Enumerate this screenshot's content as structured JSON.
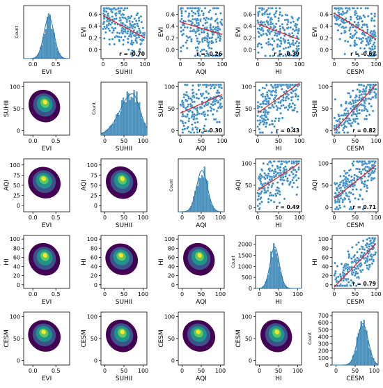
{
  "figure": {
    "type": "pairplot",
    "variables": [
      "EVI",
      "SUHII",
      "AQI",
      "HI",
      "CESM"
    ],
    "corr_prefix": "r = "
  },
  "colors": {
    "hist_fill": "#5b9fc9",
    "hist_edge": "#2a6f9a",
    "kde_line": "#1f77b4",
    "scatter_point": "#2e86c1",
    "scatter_edge": "#ffffff",
    "regression_line": "#e41a1c",
    "density_low": "#440154",
    "density_mid": "#21918c",
    "density_high": "#fde725"
  },
  "chart_data": [
    {
      "type": "histogram",
      "row": 0,
      "col": 0,
      "x": "EVI",
      "ylabel": "Count",
      "xlim": [
        -0.2,
        0.8
      ],
      "xticks": [
        "0.0",
        "0.5"
      ],
      "yticks": [],
      "distribution": {
        "mean": 0.35,
        "sd": 0.11
      }
    },
    {
      "type": "scatter",
      "row": 0,
      "col": 1,
      "xlabel": "SUHII",
      "ylabel": "EVI",
      "xlim": [
        -5,
        105
      ],
      "ylim": [
        -0.15,
        0.75
      ],
      "xticks": [
        "0",
        "50",
        "100"
      ],
      "yticks": [
        "0.0",
        "0.2",
        "0.4",
        "0.6"
      ],
      "r": -0.7,
      "regression": {
        "x": [
          0,
          100
        ],
        "y": [
          0.58,
          0.2
        ]
      }
    },
    {
      "type": "scatter",
      "row": 0,
      "col": 2,
      "xlabel": "AQI",
      "ylabel": "EVI",
      "xlim": [
        -5,
        105
      ],
      "ylim": [
        -0.15,
        0.75
      ],
      "xticks": [
        "0",
        "50",
        "100"
      ],
      "yticks": [
        "0.0",
        "0.2",
        "0.4",
        "0.6"
      ],
      "r": -0.26,
      "regression": {
        "x": [
          0,
          100
        ],
        "y": [
          0.47,
          0.26
        ]
      }
    },
    {
      "type": "scatter",
      "row": 0,
      "col": 3,
      "xlabel": "HI",
      "ylabel": "EVI",
      "xlim": [
        -5,
        105
      ],
      "ylim": [
        -0.15,
        0.75
      ],
      "xticks": [
        "0",
        "50",
        "100"
      ],
      "yticks": [
        "0.0",
        "0.2",
        "0.4",
        "0.6"
      ],
      "r": -0.39,
      "regression": {
        "x": [
          0,
          100
        ],
        "y": [
          0.44,
          0.17
        ]
      }
    },
    {
      "type": "scatter",
      "row": 0,
      "col": 4,
      "xlabel": "CESM",
      "ylabel": "EVI",
      "xlim": [
        -5,
        105
      ],
      "ylim": [
        -0.15,
        0.75
      ],
      "xticks": [
        "0",
        "50",
        "100"
      ],
      "yticks": [
        "0.0",
        "0.2",
        "0.4",
        "0.6"
      ],
      "r": -0.62,
      "regression": {
        "x": [
          0,
          100
        ],
        "y": [
          0.62,
          0.18
        ]
      }
    },
    {
      "type": "density",
      "row": 1,
      "col": 0,
      "xlabel": "EVI",
      "ylabel": "SUHII",
      "xlim": [
        -0.2,
        0.8
      ],
      "ylim": [
        -10,
        110
      ],
      "xticks": [
        "0.0",
        "0.5"
      ],
      "yticks": [
        "0",
        "50",
        "100"
      ]
    },
    {
      "type": "histogram",
      "row": 1,
      "col": 1,
      "x": "SUHII",
      "ylabel": "Count",
      "xlim": [
        -10,
        110
      ],
      "xticks": [
        "0",
        "50",
        "100"
      ],
      "yticks": [],
      "distribution": {
        "mean": 72,
        "sd": 20,
        "skew": "left"
      }
    },
    {
      "type": "scatter",
      "row": 1,
      "col": 2,
      "xlabel": "AQI",
      "ylabel": "SUHII",
      "xlim": [
        -5,
        105
      ],
      "ylim": [
        -10,
        110
      ],
      "xticks": [
        "0",
        "50",
        "100"
      ],
      "yticks": [
        "0",
        "50",
        "100"
      ],
      "r": 0.3,
      "regression": {
        "x": [
          0,
          100
        ],
        "y": [
          40,
          82
        ]
      }
    },
    {
      "type": "scatter",
      "row": 1,
      "col": 3,
      "xlabel": "HI",
      "ylabel": "SUHII",
      "xlim": [
        -5,
        105
      ],
      "ylim": [
        -10,
        110
      ],
      "xticks": [
        "0",
        "50",
        "100"
      ],
      "yticks": [
        "0",
        "50",
        "100"
      ],
      "r": 0.43,
      "regression": {
        "x": [
          0,
          100
        ],
        "y": [
          40,
          108
        ]
      }
    },
    {
      "type": "scatter",
      "row": 1,
      "col": 4,
      "xlabel": "CESM",
      "ylabel": "SUHII",
      "xlim": [
        -5,
        105
      ],
      "ylim": [
        -10,
        110
      ],
      "xticks": [
        "0",
        "50",
        "100"
      ],
      "yticks": [
        "0",
        "50",
        "100"
      ],
      "r": 0.82,
      "regression": {
        "x": [
          0,
          100
        ],
        "y": [
          0,
          105
        ]
      }
    },
    {
      "type": "density",
      "row": 2,
      "col": 0,
      "xlabel": "EVI",
      "ylabel": "AQI",
      "xlim": [
        -0.2,
        0.8
      ],
      "ylim": [
        -15,
        115
      ],
      "xticks": [
        "0.0",
        "0.5"
      ],
      "yticks": [
        "0",
        "25",
        "50",
        "75",
        "100"
      ]
    },
    {
      "type": "density",
      "row": 2,
      "col": 1,
      "xlabel": "SUHII",
      "ylabel": "AQI",
      "xlim": [
        -10,
        110
      ],
      "ylim": [
        -15,
        115
      ],
      "xticks": [
        "0",
        "50",
        "100"
      ],
      "yticks": [
        "0",
        "25",
        "50",
        "75",
        "100"
      ]
    },
    {
      "type": "histogram",
      "row": 2,
      "col": 2,
      "x": "AQI",
      "ylabel": "Count",
      "xlim": [
        -10,
        110
      ],
      "xticks": [
        "0",
        "50",
        "100"
      ],
      "yticks": [],
      "distribution": {
        "mean": 52,
        "sd": 14
      }
    },
    {
      "type": "scatter",
      "row": 2,
      "col": 3,
      "xlabel": "HI",
      "ylabel": "AQI",
      "xlim": [
        -5,
        105
      ],
      "ylim": [
        -10,
        110
      ],
      "xticks": [
        "0",
        "50",
        "100"
      ],
      "yticks": [
        "0",
        "50",
        "100"
      ],
      "r": 0.49,
      "regression": {
        "x": [
          0,
          100
        ],
        "y": [
          38,
          100
        ]
      }
    },
    {
      "type": "scatter",
      "row": 2,
      "col": 4,
      "xlabel": "CESM",
      "ylabel": "AQI",
      "xlim": [
        -5,
        105
      ],
      "ylim": [
        -10,
        110
      ],
      "xticks": [
        "0",
        "50",
        "100"
      ],
      "yticks": [
        "0",
        "50",
        "100"
      ],
      "r": 0.71,
      "regression": {
        "x": [
          0,
          100
        ],
        "y": [
          20,
          95
        ]
      }
    },
    {
      "type": "density",
      "row": 3,
      "col": 0,
      "xlabel": "EVI",
      "ylabel": "HI",
      "xlim": [
        -0.2,
        0.8
      ],
      "ylim": [
        -8,
        108
      ],
      "xticks": [
        "0.0",
        "0.5"
      ],
      "yticks": [
        "0",
        "20",
        "40",
        "60",
        "80",
        "100"
      ]
    },
    {
      "type": "density",
      "row": 3,
      "col": 1,
      "xlabel": "SUHII",
      "ylabel": "HI",
      "xlim": [
        -10,
        110
      ],
      "ylim": [
        -8,
        108
      ],
      "xticks": [
        "0",
        "50",
        "100"
      ],
      "yticks": [
        "0",
        "20",
        "40",
        "60",
        "80",
        "100"
      ]
    },
    {
      "type": "density",
      "row": 3,
      "col": 2,
      "xlabel": "AQI",
      "ylabel": "HI",
      "xlim": [
        -10,
        110
      ],
      "ylim": [
        -8,
        108
      ],
      "xticks": [
        "0",
        "50",
        "100"
      ],
      "yticks": [
        "0",
        "20",
        "40",
        "60",
        "80",
        "100"
      ]
    },
    {
      "type": "histogram",
      "row": 3,
      "col": 3,
      "x": "HI",
      "ylabel": "Count",
      "xlim": [
        -10,
        110
      ],
      "xticks": [
        "0",
        "50",
        "100"
      ],
      "yticks": [
        "0",
        "500",
        "1000",
        "1500",
        "2000"
      ],
      "ylim": [
        0,
        2400
      ],
      "distribution": {
        "mean": 40,
        "sd": 12
      }
    },
    {
      "type": "scatter",
      "row": 3,
      "col": 4,
      "xlabel": "CESM",
      "ylabel": "HI",
      "xlim": [
        -5,
        105
      ],
      "ylim": [
        -8,
        108
      ],
      "xticks": [
        "0",
        "50",
        "100"
      ],
      "yticks": [
        "0",
        "20",
        "40",
        "60",
        "80",
        "100"
      ],
      "r": 0.79,
      "regression": {
        "x": [
          0,
          100
        ],
        "y": [
          -5,
          90
        ]
      }
    },
    {
      "type": "density",
      "row": 4,
      "col": 0,
      "xlabel": "EVI",
      "ylabel": "CESM",
      "xlim": [
        -0.2,
        0.8
      ],
      "ylim": [
        -10,
        110
      ],
      "xticks": [
        "0.0",
        "0.5"
      ],
      "yticks": [
        "0",
        "50",
        "100"
      ]
    },
    {
      "type": "density",
      "row": 4,
      "col": 1,
      "xlabel": "SUHII",
      "ylabel": "CESM",
      "xlim": [
        -10,
        110
      ],
      "ylim": [
        -10,
        110
      ],
      "xticks": [
        "0",
        "50",
        "100"
      ],
      "yticks": [
        "0",
        "50",
        "100"
      ]
    },
    {
      "type": "density",
      "row": 4,
      "col": 2,
      "xlabel": "AQI",
      "ylabel": "CESM",
      "xlim": [
        -10,
        110
      ],
      "ylim": [
        -10,
        110
      ],
      "xticks": [
        "0",
        "50",
        "100"
      ],
      "yticks": [
        "0",
        "50",
        "100"
      ]
    },
    {
      "type": "density",
      "row": 4,
      "col": 3,
      "xlabel": "HI",
      "ylabel": "CESM",
      "xlim": [
        -10,
        110
      ],
      "ylim": [
        -10,
        110
      ],
      "xticks": [
        "0",
        "50",
        "100"
      ],
      "yticks": [
        "0",
        "50",
        "100"
      ]
    },
    {
      "type": "histogram",
      "row": 4,
      "col": 4,
      "x": "CESM",
      "ylabel": "Count",
      "xlim": [
        -10,
        110
      ],
      "xticks": [
        "0",
        "50",
        "100"
      ],
      "yticks": [
        "0",
        "100",
        "200",
        "300",
        "400",
        "500",
        "600",
        "700"
      ],
      "ylim": [
        0,
        750
      ],
      "distribution": {
        "mean": 70,
        "sd": 14
      }
    }
  ]
}
